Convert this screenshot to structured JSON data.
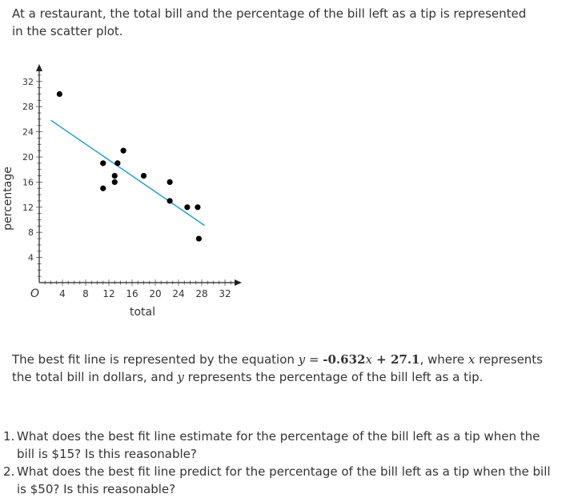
{
  "intro": "At a restaurant, the total bill and the percentage of the bill left as a tip is represented in the scatter plot.",
  "equation_paragraph": {
    "before": "The best fit line is represented by the equation ",
    "eq_y": "y",
    "eq_equals": " = ",
    "eq_coef": "-0.632",
    "eq_x": "x",
    "eq_plus": " + 27.1",
    "middle": ", where ",
    "var_x": "x",
    "after_x": " represents the total bill in dollars, and ",
    "var_y": "y",
    "after_y": " represents the percentage of the bill left as a tip."
  },
  "questions": [
    {
      "number": "1.",
      "text": "What does the best fit line estimate for the percentage of the bill left as a tip when the bill is $15? Is this reasonable?"
    },
    {
      "number": "2.",
      "text": "What does the best fit line predict for the percentage of the bill left as a tip when the bill is $50? Is this reasonable?"
    }
  ],
  "colors": {
    "text": "#333333",
    "fit_line": "#1a9bc9",
    "points": "#000000"
  },
  "chart_data": {
    "type": "scatter",
    "title": "",
    "xlabel": "total",
    "ylabel": "percentage",
    "origin_label": "O",
    "xlim": [
      0,
      33
    ],
    "ylim": [
      0,
      34
    ],
    "x_ticks": [
      4,
      8,
      12,
      16,
      20,
      24,
      28,
      32
    ],
    "y_ticks": [
      4,
      8,
      12,
      16,
      20,
      24,
      28,
      32
    ],
    "points": [
      {
        "x": 3.5,
        "y": 30
      },
      {
        "x": 11,
        "y": 19
      },
      {
        "x": 11,
        "y": 15
      },
      {
        "x": 13,
        "y": 17
      },
      {
        "x": 13,
        "y": 16
      },
      {
        "x": 13.5,
        "y": 19
      },
      {
        "x": 14.5,
        "y": 21
      },
      {
        "x": 18,
        "y": 17
      },
      {
        "x": 22.5,
        "y": 16
      },
      {
        "x": 22.5,
        "y": 13
      },
      {
        "x": 25.5,
        "y": 12
      },
      {
        "x": 27.3,
        "y": 12
      },
      {
        "x": 27.5,
        "y": 7
      }
    ],
    "fit_line": {
      "slope": -0.632,
      "intercept": 27.1,
      "x_start": 2,
      "x_end": 28.5
    }
  }
}
